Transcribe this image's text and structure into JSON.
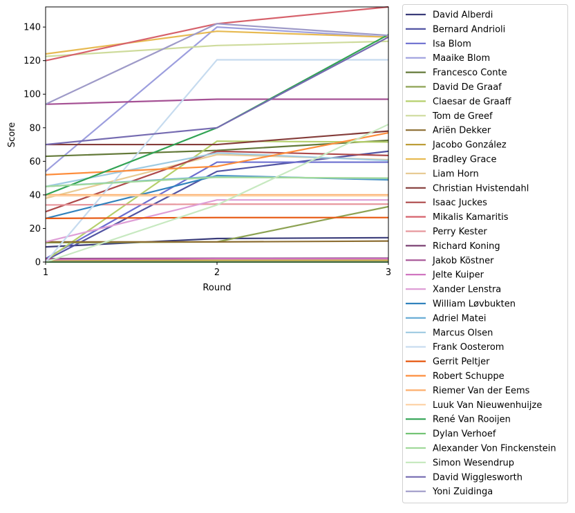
{
  "chart_data": {
    "type": "line",
    "title": "",
    "xlabel": "Round",
    "ylabel": "Score",
    "x": [
      1,
      2,
      3
    ],
    "xticks": [
      "1",
      "2",
      "3"
    ],
    "yticks": [
      "0",
      "20",
      "40",
      "60",
      "80",
      "100",
      "120",
      "140"
    ],
    "xlim": [
      1,
      3
    ],
    "ylim": [
      0,
      152
    ],
    "grid": false,
    "legend_placement": "outside-right",
    "series": [
      {
        "name": "David Alberdi",
        "color": "#393b79",
        "values": [
          9,
          14,
          14.5
        ]
      },
      {
        "name": "Bernard Andrioli",
        "color": "#5254a3",
        "values": [
          1,
          54,
          66
        ]
      },
      {
        "name": "Isa Blom",
        "color": "#6b6ecf",
        "values": [
          2,
          59.5,
          59.5
        ]
      },
      {
        "name": "Maaike Blom",
        "color": "#9c9ede",
        "values": [
          54,
          140,
          134
        ]
      },
      {
        "name": "Francesco Conte",
        "color": "#637939",
        "values": [
          63,
          66.5,
          72.5
        ]
      },
      {
        "name": "David De Graaf",
        "color": "#8ca252",
        "values": [
          11.5,
          12,
          33
        ]
      },
      {
        "name": "Claesar de Graaff",
        "color": "#b5cf6b",
        "values": [
          1,
          72,
          71.5
        ]
      },
      {
        "name": "Tom de Greef",
        "color": "#cedb9c",
        "values": [
          122.5,
          129,
          131.5
        ]
      },
      {
        "name": "Ariën Dekker",
        "color": "#8c6d31",
        "values": [
          12,
          12,
          12.5
        ]
      },
      {
        "name": "Jacobo González",
        "color": "#bd9e39",
        "values": [
          1,
          1,
          1
        ]
      },
      {
        "name": "Bradley Grace",
        "color": "#e7ba52",
        "values": [
          124,
          137.5,
          134
        ]
      },
      {
        "name": "Liam Horn",
        "color": "#e7cb94",
        "values": [
          38,
          64,
          61
        ]
      },
      {
        "name": "Christian Hvistendahl",
        "color": "#843c39",
        "values": [
          70,
          70,
          78
        ]
      },
      {
        "name": "Isaac Juckes",
        "color": "#ad494a",
        "values": [
          30,
          66,
          63.5
        ]
      },
      {
        "name": "Mikalis Kamaritis",
        "color": "#d6616b",
        "values": [
          120,
          142,
          152
        ]
      },
      {
        "name": "Perry Kester",
        "color": "#e7969c",
        "values": [
          34,
          34.5,
          34.5
        ]
      },
      {
        "name": "Richard Koning",
        "color": "#7b4173",
        "values": [
          2,
          2.2,
          2.3
        ]
      },
      {
        "name": "Jakob Köstner",
        "color": "#a55194",
        "values": [
          94,
          97,
          97
        ]
      },
      {
        "name": "Jelte Kuiper",
        "color": "#ce6dbd",
        "values": [
          1.5,
          2,
          2
        ]
      },
      {
        "name": "Xander Lenstra",
        "color": "#de9ed6",
        "values": [
          12,
          37,
          37
        ]
      },
      {
        "name": "William Løvbukten",
        "color": "#3182bd",
        "values": [
          26,
          51.5,
          49
        ]
      },
      {
        "name": "Adriel Matei",
        "color": "#6baed6",
        "values": [
          45,
          51,
          49.5
        ]
      },
      {
        "name": "Marcus Olsen",
        "color": "#9ecae1",
        "values": [
          45,
          65,
          60.5
        ]
      },
      {
        "name": "Frank Oosterom",
        "color": "#c6dbef",
        "values": [
          0,
          120.5,
          120.5
        ]
      },
      {
        "name": "Gerrit Peltjer",
        "color": "#e6550d",
        "values": [
          26,
          26.5,
          26.5
        ]
      },
      {
        "name": "Robert Schuppe",
        "color": "#fd8d3c",
        "values": [
          52,
          57,
          77
        ]
      },
      {
        "name": "Riemer Van der Eems",
        "color": "#fdae6b",
        "values": [
          40,
          40,
          40
        ]
      },
      {
        "name": "Luuk Van Nieuwenhuijze",
        "color": "#fdd0a2",
        "values": [
          39.5,
          39.5,
          39.5
        ]
      },
      {
        "name": "René Van Rooijen",
        "color": "#31a354",
        "values": [
          40,
          80,
          135.5
        ]
      },
      {
        "name": "Dylan Verhoef",
        "color": "#74c476",
        "values": [
          0,
          0,
          0
        ]
      },
      {
        "name": "Alexander Von Finckenstein",
        "color": "#a1d99b",
        "values": [
          45,
          50.5,
          50
        ]
      },
      {
        "name": "Simon Wesendrup",
        "color": "#c7e9c0",
        "values": [
          0,
          34,
          82
        ]
      },
      {
        "name": "David Wigglesworth",
        "color": "#756bb1",
        "values": [
          70,
          80,
          134
        ]
      },
      {
        "name": "Yoni Zuidinga",
        "color": "#9e9ac8",
        "values": [
          94,
          142,
          135
        ]
      }
    ]
  }
}
